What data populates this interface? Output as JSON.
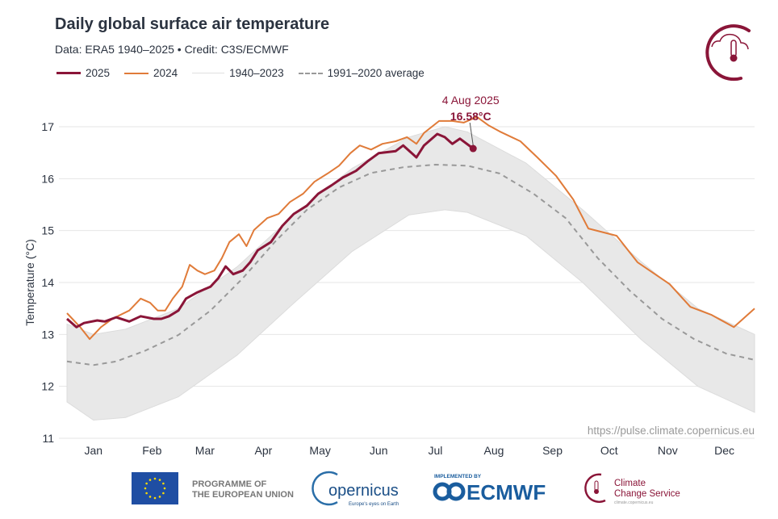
{
  "header": {
    "title": "Daily global surface air temperature",
    "subtitle": "Data: ERA5 1940–2025  •  Credit: C3S/ECMWF",
    "logo_icon": "c3s-thermometer-cloud-logo"
  },
  "colors": {
    "y2025": "#8a1538",
    "y2024": "#e07b39",
    "historic": "#dcdcdc",
    "average": "#999999",
    "grid": "#e6e6e6"
  },
  "chart_data": {
    "type": "line",
    "title": "Daily global surface air temperature",
    "ylabel": "Temperature (°C)",
    "xlabel": "",
    "ylim": [
      11,
      17
    ],
    "yticks": [
      "11",
      "12",
      "13",
      "14",
      "15",
      "16",
      "17"
    ],
    "xticks": [
      "Jan",
      "Feb",
      "Mar",
      "Apr",
      "May",
      "Jun",
      "Jul",
      "Aug",
      "Sep",
      "Oct",
      "Nov",
      "Dec"
    ],
    "grid": true,
    "legend_placement": "top-left",
    "legend": [
      "2025",
      "2024",
      "1940–2023",
      "1991–2020 average"
    ],
    "annotation": {
      "date_label": "4 Aug 2025",
      "value_label": "16.58°C",
      "x": "08-04",
      "y": 16.58
    },
    "watermark": "https://pulse.climate.copernicus.eu",
    "series": [
      {
        "name": "2025",
        "x": [
          "01-01",
          "01-06",
          "01-10",
          "01-17",
          "01-21",
          "01-27",
          "02-03",
          "02-09",
          "02-16",
          "02-20",
          "02-24",
          "03-01",
          "03-05",
          "03-11",
          "03-18",
          "03-22",
          "03-26",
          "03-30",
          "04-04",
          "04-08",
          "04-12",
          "04-19",
          "04-25",
          "05-01",
          "05-08",
          "05-14",
          "05-21",
          "05-27",
          "06-03",
          "06-09",
          "06-15",
          "06-24",
          "06-28",
          "07-05",
          "07-09",
          "07-16",
          "07-20",
          "07-24",
          "07-28",
          "08-04"
        ],
        "y": [
          13.3,
          13.14,
          13.22,
          13.27,
          13.25,
          13.33,
          13.25,
          13.35,
          13.3,
          13.3,
          13.35,
          13.46,
          13.69,
          13.81,
          13.92,
          14.08,
          14.31,
          14.16,
          14.23,
          14.39,
          14.62,
          14.78,
          15.09,
          15.32,
          15.48,
          15.71,
          15.87,
          16.02,
          16.15,
          16.33,
          16.49,
          16.53,
          16.64,
          16.41,
          16.64,
          16.86,
          16.8,
          16.67,
          16.77,
          16.58
        ]
      },
      {
        "name": "2024",
        "x": [
          "01-01",
          "01-08",
          "01-13",
          "01-19",
          "01-25",
          "02-03",
          "02-09",
          "02-14",
          "02-18",
          "02-22",
          "02-26",
          "03-03",
          "03-07",
          "03-11",
          "03-15",
          "03-20",
          "03-24",
          "03-28",
          "04-02",
          "04-06",
          "04-10",
          "04-17",
          "04-23",
          "04-29",
          "05-06",
          "05-12",
          "05-19",
          "05-25",
          "05-31",
          "06-05",
          "06-11",
          "06-17",
          "06-24",
          "06-30",
          "07-05",
          "07-09",
          "07-17",
          "07-24",
          "07-30",
          "08-06",
          "08-12",
          "08-18",
          "08-29",
          "09-07",
          "09-17",
          "09-26",
          "10-04",
          "10-19",
          "10-30",
          "11-16",
          "11-27",
          "12-08",
          "12-20",
          "12-31"
        ],
        "y": [
          13.41,
          13.14,
          12.91,
          13.14,
          13.3,
          13.46,
          13.69,
          13.61,
          13.46,
          13.46,
          13.69,
          13.92,
          14.34,
          14.23,
          14.16,
          14.23,
          14.47,
          14.78,
          14.93,
          14.7,
          15.01,
          15.24,
          15.32,
          15.55,
          15.71,
          15.94,
          16.1,
          16.25,
          16.49,
          16.64,
          16.56,
          16.67,
          16.72,
          16.8,
          16.67,
          16.88,
          17.11,
          17.11,
          17.08,
          17.19,
          17.03,
          16.91,
          16.72,
          16.41,
          16.05,
          15.6,
          15.04,
          14.9,
          14.39,
          13.97,
          13.53,
          13.38,
          13.14,
          13.5
        ]
      },
      {
        "name": "1991–2020 average",
        "x": [
          "01-01",
          "01-15",
          "01-27",
          "02-11",
          "03-01",
          "03-18",
          "04-04",
          "04-21",
          "05-08",
          "05-25",
          "06-11",
          "06-28",
          "07-15",
          "08-01",
          "08-18",
          "09-05",
          "09-22",
          "10-09",
          "10-26",
          "11-12",
          "11-29",
          "12-16",
          "12-31"
        ],
        "y": [
          12.48,
          12.41,
          12.48,
          12.68,
          12.99,
          13.46,
          14.08,
          14.78,
          15.4,
          15.83,
          16.11,
          16.22,
          16.27,
          16.25,
          16.1,
          15.71,
          15.24,
          14.47,
          13.84,
          13.3,
          12.91,
          12.63,
          12.51
        ]
      },
      {
        "name": "1940–2023",
        "type": "range",
        "x": [
          "01-01",
          "01-15",
          "02-01",
          "03-01",
          "04-01",
          "05-01",
          "06-01",
          "07-01",
          "07-20",
          "08-01",
          "09-01",
          "10-01",
          "11-01",
          "12-01",
          "12-31"
        ],
        "upper": [
          13.2,
          13.0,
          13.1,
          13.5,
          14.3,
          15.3,
          16.2,
          16.8,
          17.0,
          16.9,
          16.3,
          15.4,
          14.4,
          13.5,
          13.0
        ],
        "lower": [
          11.7,
          11.35,
          11.4,
          11.8,
          12.6,
          13.6,
          14.6,
          15.3,
          15.4,
          15.35,
          14.9,
          14.0,
          12.9,
          12.0,
          11.5
        ]
      }
    ]
  },
  "footer": {
    "eu_line1": "PROGRAMME OF",
    "eu_line2": "THE EUROPEAN UNION",
    "copernicus": "opernicus",
    "copernicus_tagline": "Europe's eyes on Earth",
    "implemented_by": "IMPLEMENTED BY",
    "ecmwf": "ECMWF",
    "c3s_line1": "Climate",
    "c3s_line2": "Change Service",
    "c3s_url": "climate.copernicus.eu"
  }
}
